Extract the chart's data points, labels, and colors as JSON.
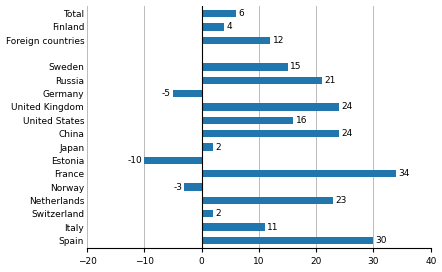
{
  "categories": [
    "Total",
    "Finland",
    "Foreign countries",
    "",
    "Sweden",
    "Russia",
    "Germany",
    "United Kingdom",
    "United States",
    "China",
    "Japan",
    "Estonia",
    "France",
    "Norway",
    "Netherlands",
    "Switzerland",
    "Italy",
    "Spain"
  ],
  "values": [
    6,
    4,
    12,
    null,
    15,
    21,
    -5,
    24,
    16,
    24,
    2,
    -10,
    34,
    -3,
    23,
    2,
    11,
    30
  ],
  "bar_color": "#2176ae",
  "xlim": [
    -20,
    40
  ],
  "xticks": [
    -20,
    -10,
    0,
    10,
    20,
    30,
    40
  ],
  "grid_color": "#b0b0b0",
  "bar_height": 0.55,
  "label_fontsize": 6.5,
  "tick_fontsize": 6.5,
  "value_fontsize": 6.5
}
